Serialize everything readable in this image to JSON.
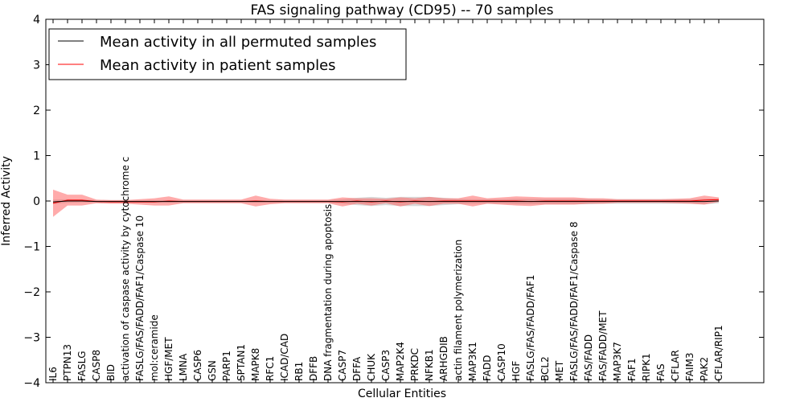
{
  "chart_data": {
    "type": "line",
    "title": "FAS signaling pathway (CD95) -- 70 samples",
    "xlabel": "Cellular Entities",
    "ylabel": "Inferred Activity",
    "ylim": [
      -4,
      4
    ],
    "yticks": [
      -4,
      -3,
      -2,
      -1,
      0,
      1,
      2,
      3,
      4
    ],
    "ytick_labels": [
      "−4",
      "−3",
      "−2",
      "−1",
      "0",
      "1",
      "2",
      "3",
      "4"
    ],
    "grid": false,
    "legend_position": "top-left",
    "categories": [
      "IL6",
      "PTPN13",
      "FASLG",
      "CASP8",
      "BID",
      "activation of caspase activity by cytochrome c",
      "FASLG/FAS/FADD/FAF1/Caspase 10",
      "mol:ceramide",
      "HGF/MET",
      "LMNA",
      "CASP6",
      "GSN",
      "PARP1",
      "SPTAN1",
      "MAPK8",
      "RFC1",
      "ICAD/CAD",
      "RB1",
      "DFFB",
      "DNA fragmentation during apoptosis",
      "CASP7",
      "DFFA",
      "CHUK",
      "CASP3",
      "MAP2K4",
      "PRKDC",
      "NFKB1",
      "ARHGDIB",
      "actin filament polymerization",
      "MAP3K1",
      "FADD",
      "CASP10",
      "HGF",
      "FASLG/FAS/FADD/FAF1",
      "BCL2",
      "MET",
      "FASLG/FAS/FADD/FAF1/Caspase 8",
      "FAS/FADD",
      "FAS/FADD/MET",
      "MAP3K7",
      "FAF1",
      "RIPK1",
      "FAS",
      "CFLAR",
      "FAIM3",
      "PAK2",
      "CFLAR/RIP1"
    ],
    "series": [
      {
        "name": "Mean activity in all permuted samples",
        "color": "#000000",
        "band_color": "#c8c8c8",
        "values": [
          -0.02,
          0.0,
          0.0,
          -0.01,
          -0.01,
          -0.01,
          -0.01,
          -0.01,
          -0.01,
          -0.01,
          -0.01,
          -0.01,
          -0.01,
          -0.01,
          -0.01,
          -0.01,
          -0.01,
          -0.01,
          -0.01,
          -0.01,
          -0.01,
          -0.01,
          -0.01,
          -0.01,
          -0.01,
          -0.01,
          -0.01,
          -0.01,
          -0.01,
          -0.01,
          -0.01,
          -0.01,
          -0.01,
          -0.01,
          -0.01,
          -0.01,
          -0.01,
          -0.01,
          -0.01,
          -0.01,
          -0.01,
          -0.01,
          -0.01,
          -0.01,
          -0.01,
          -0.01,
          0.0
        ],
        "band_halfwidth": [
          0.05,
          0.04,
          0.03,
          0.03,
          0.03,
          0.03,
          0.03,
          0.03,
          0.03,
          0.03,
          0.03,
          0.03,
          0.03,
          0.03,
          0.03,
          0.03,
          0.03,
          0.03,
          0.03,
          0.03,
          0.05,
          0.08,
          0.1,
          0.08,
          0.1,
          0.1,
          0.1,
          0.08,
          0.06,
          0.05,
          0.05,
          0.05,
          0.06,
          0.06,
          0.06,
          0.06,
          0.06,
          0.06,
          0.05,
          0.05,
          0.05,
          0.05,
          0.05,
          0.05,
          0.05,
          0.06,
          0.05
        ]
      },
      {
        "name": "Mean activity in patient samples",
        "color": "#ff0000",
        "band_color": "#ff6666",
        "values": [
          -0.05,
          0.02,
          0.02,
          -0.01,
          -0.02,
          -0.02,
          -0.02,
          -0.02,
          0.0,
          -0.01,
          -0.01,
          -0.01,
          -0.01,
          -0.01,
          0.0,
          -0.01,
          -0.01,
          -0.01,
          -0.01,
          -0.01,
          -0.02,
          0.0,
          -0.02,
          0.0,
          -0.02,
          0.0,
          -0.01,
          0.0,
          0.0,
          0.0,
          0.0,
          0.0,
          0.0,
          -0.01,
          0.0,
          0.0,
          0.0,
          0.0,
          0.0,
          0.0,
          0.0,
          0.0,
          0.0,
          0.0,
          0.0,
          0.02,
          0.03
        ],
        "band_halfwidth": [
          0.3,
          0.12,
          0.12,
          0.04,
          0.04,
          0.04,
          0.06,
          0.08,
          0.1,
          0.04,
          0.04,
          0.04,
          0.04,
          0.04,
          0.12,
          0.06,
          0.04,
          0.04,
          0.04,
          0.04,
          0.1,
          0.06,
          0.08,
          0.05,
          0.1,
          0.06,
          0.1,
          0.06,
          0.06,
          0.12,
          0.06,
          0.08,
          0.1,
          0.1,
          0.08,
          0.08,
          0.08,
          0.06,
          0.06,
          0.04,
          0.04,
          0.04,
          0.04,
          0.05,
          0.06,
          0.1,
          0.05
        ]
      }
    ]
  }
}
